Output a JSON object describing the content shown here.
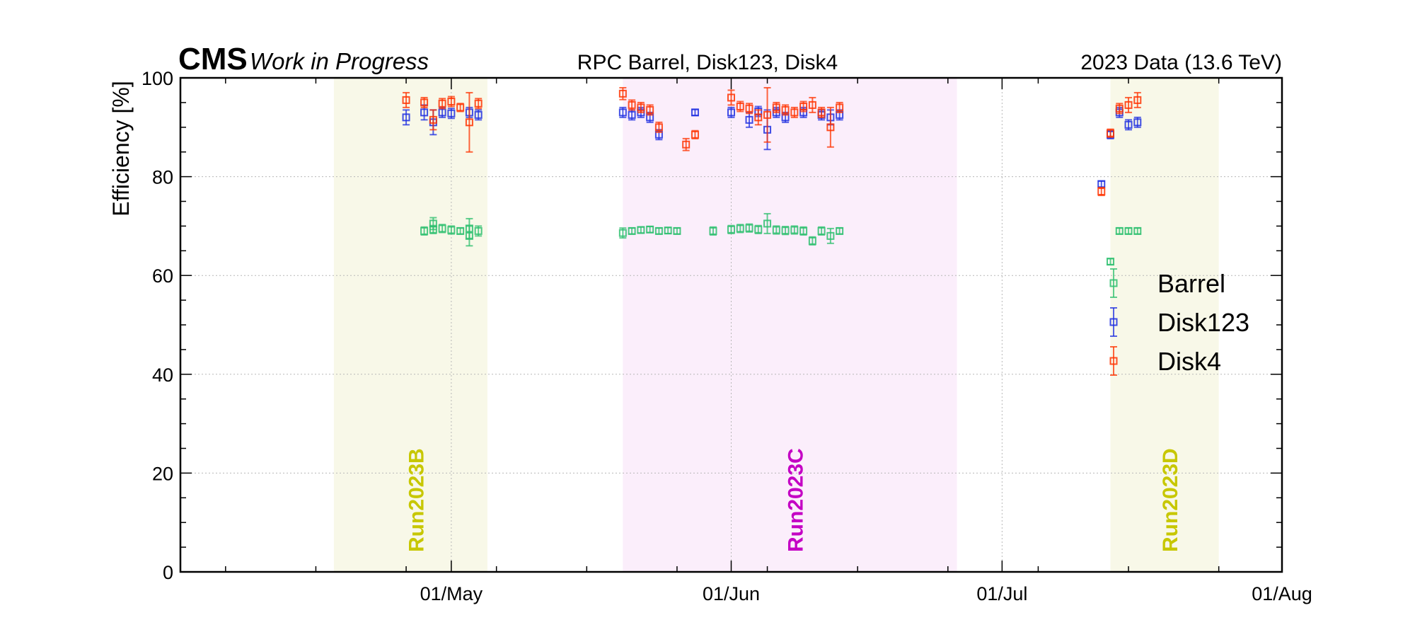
{
  "header": {
    "experiment": "CMS",
    "status": "Work in Progress",
    "title": "RPC Barrel, Disk123, Disk4",
    "dataset": "2023 Data (13.6 TeV)"
  },
  "chart_data": {
    "type": "scatter",
    "ylabel": "Efficiency [%]",
    "xlabel": "",
    "ylim": [
      0,
      100
    ],
    "yticks": [
      0,
      20,
      40,
      60,
      80,
      100
    ],
    "x_axis_type": "date",
    "xlim": [
      "2023-04-01",
      "2023-08-01"
    ],
    "xticks": [
      {
        "date": "2023-05-01",
        "label": "01/May"
      },
      {
        "date": "2023-06-01",
        "label": "01/Jun"
      },
      {
        "date": "2023-07-01",
        "label": "01/Jul"
      },
      {
        "date": "2023-08-01",
        "label": "01/Aug"
      }
    ],
    "grid": true,
    "legend_position": "right",
    "run_periods": [
      {
        "label": "Run2023B",
        "start": "2023-04-18",
        "end": "2023-05-05",
        "color": "#c7c700",
        "fill": "#f8f8e8"
      },
      {
        "label": "Run2023C",
        "start": "2023-05-20",
        "end": "2023-06-26",
        "color": "#c400c4",
        "fill": "#fbeefb"
      },
      {
        "label": "Run2023D",
        "start": "2023-07-13",
        "end": "2023-07-25",
        "color": "#c7c700",
        "fill": "#f8f8e8"
      }
    ],
    "series": [
      {
        "name": "Barrel",
        "color": "#2dbf6e",
        "points": [
          {
            "x": "2023-04-28",
            "y": 69.0,
            "err": 0.8
          },
          {
            "x": "2023-04-29",
            "y": 69.3,
            "err": 0.8
          },
          {
            "x": "2023-04-29",
            "y": 70.5,
            "err": 1.2
          },
          {
            "x": "2023-04-30",
            "y": 69.5,
            "err": 0.8
          },
          {
            "x": "2023-05-01",
            "y": 69.2,
            "err": 0.8
          },
          {
            "x": "2023-05-02",
            "y": 69.0,
            "err": 0.6
          },
          {
            "x": "2023-05-03",
            "y": 69.5,
            "err": 2.0
          },
          {
            "x": "2023-05-03",
            "y": 68.0,
            "err": 2.0
          },
          {
            "x": "2023-05-04",
            "y": 69.0,
            "err": 1.0
          },
          {
            "x": "2023-05-20",
            "y": 68.6,
            "err": 1.0
          },
          {
            "x": "2023-05-21",
            "y": 69.0,
            "err": 0.6
          },
          {
            "x": "2023-05-22",
            "y": 69.2,
            "err": 0.6
          },
          {
            "x": "2023-05-23",
            "y": 69.3,
            "err": 0.6
          },
          {
            "x": "2023-05-24",
            "y": 69.0,
            "err": 0.6
          },
          {
            "x": "2023-05-25",
            "y": 69.1,
            "err": 0.6
          },
          {
            "x": "2023-05-26",
            "y": 69.0,
            "err": 0.6
          },
          {
            "x": "2023-05-30",
            "y": 69.0,
            "err": 0.8
          },
          {
            "x": "2023-06-01",
            "y": 69.3,
            "err": 0.8
          },
          {
            "x": "2023-06-02",
            "y": 69.5,
            "err": 0.8
          },
          {
            "x": "2023-06-03",
            "y": 69.6,
            "err": 0.8
          },
          {
            "x": "2023-06-04",
            "y": 69.3,
            "err": 0.8
          },
          {
            "x": "2023-06-05",
            "y": 70.5,
            "err": 2.0
          },
          {
            "x": "2023-06-06",
            "y": 69.2,
            "err": 0.8
          },
          {
            "x": "2023-06-07",
            "y": 69.1,
            "err": 0.8
          },
          {
            "x": "2023-06-08",
            "y": 69.2,
            "err": 0.8
          },
          {
            "x": "2023-06-09",
            "y": 69.0,
            "err": 0.8
          },
          {
            "x": "2023-06-10",
            "y": 67.0,
            "err": 0.8
          },
          {
            "x": "2023-06-11",
            "y": 69.0,
            "err": 0.8
          },
          {
            "x": "2023-06-12",
            "y": 68.0,
            "err": 1.5
          },
          {
            "x": "2023-06-13",
            "y": 69.0,
            "err": 0.6
          },
          {
            "x": "2023-07-13",
            "y": 62.8,
            "err": 0.6
          },
          {
            "x": "2023-07-14",
            "y": 69.0,
            "err": 0.6
          },
          {
            "x": "2023-07-15",
            "y": 69.0,
            "err": 0.6
          },
          {
            "x": "2023-07-16",
            "y": 69.0,
            "err": 0.6
          }
        ]
      },
      {
        "name": "Disk123",
        "color": "#1f2fe0",
        "points": [
          {
            "x": "2023-04-26",
            "y": 92.0,
            "err": 1.5
          },
          {
            "x": "2023-04-28",
            "y": 93.0,
            "err": 1.5
          },
          {
            "x": "2023-04-29",
            "y": 91.0,
            "err": 2.5
          },
          {
            "x": "2023-04-30",
            "y": 93.0,
            "err": 1.0
          },
          {
            "x": "2023-05-01",
            "y": 92.8,
            "err": 1.0
          },
          {
            "x": "2023-05-03",
            "y": 93.0,
            "err": 1.0
          },
          {
            "x": "2023-05-04",
            "y": 92.5,
            "err": 1.0
          },
          {
            "x": "2023-05-20",
            "y": 93.0,
            "err": 1.0
          },
          {
            "x": "2023-05-21",
            "y": 92.5,
            "err": 1.0
          },
          {
            "x": "2023-05-22",
            "y": 93.0,
            "err": 1.0
          },
          {
            "x": "2023-05-23",
            "y": 92.0,
            "err": 1.0
          },
          {
            "x": "2023-05-24",
            "y": 88.5,
            "err": 1.0
          },
          {
            "x": "2023-05-28",
            "y": 93.0,
            "err": 0.6
          },
          {
            "x": "2023-06-01",
            "y": 93.0,
            "err": 1.0
          },
          {
            "x": "2023-06-03",
            "y": 91.5,
            "err": 1.5
          },
          {
            "x": "2023-06-04",
            "y": 93.2,
            "err": 1.0
          },
          {
            "x": "2023-06-05",
            "y": 89.5,
            "err": 4.0
          },
          {
            "x": "2023-06-06",
            "y": 93.0,
            "err": 1.0
          },
          {
            "x": "2023-06-07",
            "y": 92.0,
            "err": 1.0
          },
          {
            "x": "2023-06-09",
            "y": 93.0,
            "err": 1.0
          },
          {
            "x": "2023-06-11",
            "y": 92.5,
            "err": 1.0
          },
          {
            "x": "2023-06-12",
            "y": 92.0,
            "err": 1.5
          },
          {
            "x": "2023-06-13",
            "y": 92.5,
            "err": 1.0
          },
          {
            "x": "2023-07-12",
            "y": 78.5,
            "err": 0.6
          },
          {
            "x": "2023-07-13",
            "y": 88.5,
            "err": 0.8
          },
          {
            "x": "2023-07-14",
            "y": 93.0,
            "err": 1.0
          },
          {
            "x": "2023-07-15",
            "y": 90.5,
            "err": 1.0
          },
          {
            "x": "2023-07-16",
            "y": 91.0,
            "err": 1.0
          }
        ]
      },
      {
        "name": "Disk4",
        "color": "#ff3300",
        "points": [
          {
            "x": "2023-04-26",
            "y": 95.5,
            "err": 1.5
          },
          {
            "x": "2023-04-28",
            "y": 95.0,
            "err": 1.0
          },
          {
            "x": "2023-04-29",
            "y": 91.5,
            "err": 2.0
          },
          {
            "x": "2023-04-30",
            "y": 94.8,
            "err": 1.0
          },
          {
            "x": "2023-05-01",
            "y": 95.2,
            "err": 1.0
          },
          {
            "x": "2023-05-02",
            "y": 94.0,
            "err": 0.8
          },
          {
            "x": "2023-05-03",
            "y": 91.0,
            "err": 6.0
          },
          {
            "x": "2023-05-04",
            "y": 94.8,
            "err": 1.0
          },
          {
            "x": "2023-05-20",
            "y": 96.8,
            "err": 1.2
          },
          {
            "x": "2023-05-21",
            "y": 94.5,
            "err": 1.0
          },
          {
            "x": "2023-05-22",
            "y": 94.0,
            "err": 1.0
          },
          {
            "x": "2023-05-23",
            "y": 93.5,
            "err": 1.0
          },
          {
            "x": "2023-05-24",
            "y": 90.0,
            "err": 1.0
          },
          {
            "x": "2023-05-27",
            "y": 86.5,
            "err": 1.2
          },
          {
            "x": "2023-05-28",
            "y": 88.5,
            "err": 0.8
          },
          {
            "x": "2023-06-01",
            "y": 96.0,
            "err": 1.5
          },
          {
            "x": "2023-06-02",
            "y": 94.2,
            "err": 1.0
          },
          {
            "x": "2023-06-03",
            "y": 93.8,
            "err": 1.0
          },
          {
            "x": "2023-06-04",
            "y": 92.0,
            "err": 1.5
          },
          {
            "x": "2023-06-05",
            "y": 92.5,
            "err": 5.5
          },
          {
            "x": "2023-06-06",
            "y": 94.0,
            "err": 1.0
          },
          {
            "x": "2023-06-07",
            "y": 93.5,
            "err": 1.0
          },
          {
            "x": "2023-06-08",
            "y": 93.0,
            "err": 1.0
          },
          {
            "x": "2023-06-09",
            "y": 94.2,
            "err": 1.0
          },
          {
            "x": "2023-06-10",
            "y": 94.5,
            "err": 1.5
          },
          {
            "x": "2023-06-11",
            "y": 93.0,
            "err": 1.0
          },
          {
            "x": "2023-06-12",
            "y": 90.0,
            "err": 4.0
          },
          {
            "x": "2023-06-13",
            "y": 94.0,
            "err": 1.0
          },
          {
            "x": "2023-07-12",
            "y": 77.0,
            "err": 0.8
          },
          {
            "x": "2023-07-13",
            "y": 88.8,
            "err": 0.8
          },
          {
            "x": "2023-07-14",
            "y": 93.8,
            "err": 1.0
          },
          {
            "x": "2023-07-15",
            "y": 94.5,
            "err": 1.5
          },
          {
            "x": "2023-07-16",
            "y": 95.5,
            "err": 1.5
          }
        ]
      }
    ]
  }
}
